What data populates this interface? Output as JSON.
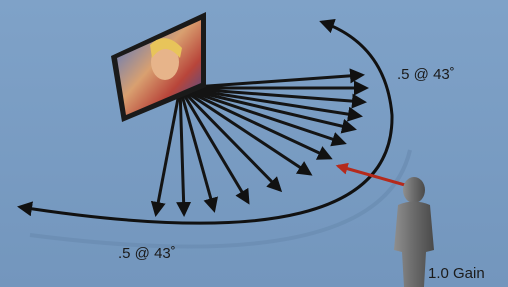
{
  "labels": {
    "top_angle": ".5 @ 43˚",
    "bottom_angle": ".5 @ 43˚",
    "gain": "1.0 Gain"
  }
}
